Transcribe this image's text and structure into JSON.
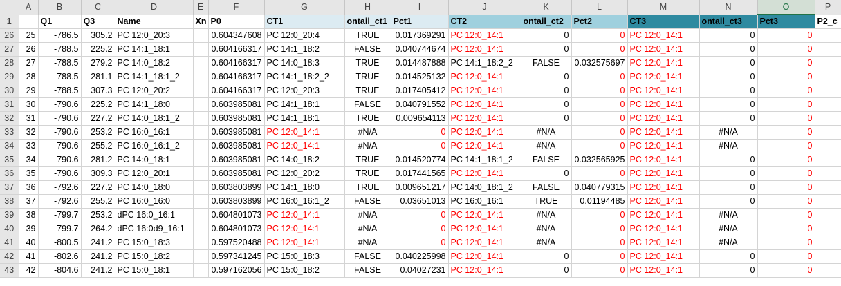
{
  "columns": [
    "",
    "A",
    "B",
    "C",
    "D",
    "E",
    "F",
    "G",
    "H",
    "I",
    "J",
    "K",
    "L",
    "M",
    "N",
    "O",
    "P"
  ],
  "selected_column": "O",
  "header_row": {
    "row_num": "1",
    "cells": [
      "",
      "Q1",
      "Q3",
      "Name",
      "Xn",
      "P0",
      "CT1",
      "ontail_ct1",
      "Pct1",
      "CT2",
      "ontail_ct2",
      "Pct2",
      "CT3",
      "ontail_ct3",
      "Pct3",
      "P2_c"
    ]
  },
  "rows": [
    {
      "n": "26",
      "cells": [
        "25",
        "-786.5",
        "305.2",
        "PC 12:0_20:3",
        "",
        "0.604347608",
        "PC 12:0_20:4",
        "TRUE",
        "0.017369291",
        "PC 12:0_14:1",
        "0",
        "0",
        "PC 12:0_14:1",
        "0",
        "0",
        ""
      ]
    },
    {
      "n": "27",
      "cells": [
        "26",
        "-788.5",
        "225.2",
        "PC 14:1_18:1",
        "",
        "0.604166317",
        "PC 14:1_18:2",
        "FALSE",
        "0.040744674",
        "PC 12:0_14:1",
        "0",
        "0",
        "PC 12:0_14:1",
        "0",
        "0",
        ""
      ]
    },
    {
      "n": "28",
      "cells": [
        "27",
        "-788.5",
        "279.2",
        "PC 14:0_18:2",
        "",
        "0.604166317",
        "PC 14:0_18:3",
        "TRUE",
        "0.014487888",
        "PC 14:1_18:2_2",
        "FALSE",
        "0.032575697",
        "PC 12:0_14:1",
        "0",
        "0",
        ""
      ]
    },
    {
      "n": "29",
      "cells": [
        "28",
        "-788.5",
        "281.1",
        "PC 14:1_18:1_2",
        "",
        "0.604166317",
        "PC 14:1_18:2_2",
        "TRUE",
        "0.014525132",
        "PC 12:0_14:1",
        "0",
        "0",
        "PC 12:0_14:1",
        "0",
        "0",
        ""
      ]
    },
    {
      "n": "30",
      "cells": [
        "29",
        "-788.5",
        "307.3",
        "PC 12:0_20:2",
        "",
        "0.604166317",
        "PC 12:0_20:3",
        "TRUE",
        "0.017405412",
        "PC 12:0_14:1",
        "0",
        "0",
        "PC 12:0_14:1",
        "0",
        "0",
        ""
      ]
    },
    {
      "n": "31",
      "cells": [
        "30",
        "-790.6",
        "225.2",
        "PC 14:1_18:0",
        "",
        "0.603985081",
        "PC 14:1_18:1",
        "FALSE",
        "0.040791552",
        "PC 12:0_14:1",
        "0",
        "0",
        "PC 12:0_14:1",
        "0",
        "0",
        ""
      ]
    },
    {
      "n": "32",
      "cells": [
        "31",
        "-790.6",
        "227.2",
        "PC 14:0_18:1_2",
        "",
        "0.603985081",
        "PC 14:1_18:1",
        "TRUE",
        "0.009654113",
        "PC 12:0_14:1",
        "0",
        "0",
        "PC 12:0_14:1",
        "0",
        "0",
        ""
      ]
    },
    {
      "n": "33",
      "cells": [
        "32",
        "-790.6",
        "253.2",
        "PC 16:0_16:1",
        "",
        "0.603985081",
        "PC 12:0_14:1",
        "#N/A",
        "0",
        "PC 12:0_14:1",
        "#N/A",
        "0",
        "PC 12:0_14:1",
        "#N/A",
        "0",
        ""
      ]
    },
    {
      "n": "34",
      "cells": [
        "33",
        "-790.6",
        "255.2",
        "PC 16:0_16:1_2",
        "",
        "0.603985081",
        "PC 12:0_14:1",
        "#N/A",
        "0",
        "PC 12:0_14:1",
        "#N/A",
        "0",
        "PC 12:0_14:1",
        "#N/A",
        "0",
        ""
      ]
    },
    {
      "n": "35",
      "cells": [
        "34",
        "-790.6",
        "281.2",
        "PC 14:0_18:1",
        "",
        "0.603985081",
        "PC 14:0_18:2",
        "TRUE",
        "0.014520774",
        "PC 14:1_18:1_2",
        "FALSE",
        "0.032565925",
        "PC 12:0_14:1",
        "0",
        "0",
        ""
      ]
    },
    {
      "n": "36",
      "cells": [
        "35",
        "-790.6",
        "309.3",
        "PC 12:0_20:1",
        "",
        "0.603985081",
        "PC 12:0_20:2",
        "TRUE",
        "0.017441565",
        "PC 12:0_14:1",
        "0",
        "0",
        "PC 12:0_14:1",
        "0",
        "0",
        ""
      ]
    },
    {
      "n": "37",
      "cells": [
        "36",
        "-792.6",
        "227.2",
        "PC 14:0_18:0",
        "",
        "0.603803899",
        "PC 14:1_18:0",
        "TRUE",
        "0.009651217",
        "PC 14:0_18:1_2",
        "FALSE",
        "0.040779315",
        "PC 12:0_14:1",
        "0",
        "0",
        ""
      ]
    },
    {
      "n": "38",
      "cells": [
        "37",
        "-792.6",
        "255.2",
        "PC 16:0_16:0",
        "",
        "0.603803899",
        "PC 16:0_16:1_2",
        "FALSE",
        "0.03651013",
        "PC 16:0_16:1",
        "TRUE",
        "0.01194485",
        "PC 12:0_14:1",
        "0",
        "0",
        ""
      ]
    },
    {
      "n": "39",
      "cells": [
        "38",
        "-799.7",
        "253.2",
        "dPC 16:0_16:1",
        "",
        "0.604801073",
        "PC 12:0_14:1",
        "#N/A",
        "0",
        "PC 12:0_14:1",
        "#N/A",
        "0",
        "PC 12:0_14:1",
        "#N/A",
        "0",
        ""
      ]
    },
    {
      "n": "40",
      "cells": [
        "39",
        "-799.7",
        "264.2",
        "dPC 16:0d9_16:1",
        "",
        "0.604801073",
        "PC 12:0_14:1",
        "#N/A",
        "0",
        "PC 12:0_14:1",
        "#N/A",
        "0",
        "PC 12:0_14:1",
        "#N/A",
        "0",
        ""
      ]
    },
    {
      "n": "41",
      "cells": [
        "40",
        "-800.5",
        "241.2",
        "PC 15:0_18:3",
        "",
        "0.597520488",
        "PC 12:0_14:1",
        "#N/A",
        "0",
        "PC 12:0_14:1",
        "#N/A",
        "0",
        "PC 12:0_14:1",
        "#N/A",
        "0",
        ""
      ]
    },
    {
      "n": "42",
      "cells": [
        "41",
        "-802.6",
        "241.2",
        "PC 15:0_18:2",
        "",
        "0.597341245",
        "PC 15:0_18:3",
        "FALSE",
        "0.040225998",
        "PC 12:0_14:1",
        "0",
        "0",
        "PC 12:0_14:1",
        "0",
        "0",
        ""
      ]
    },
    {
      "n": "43",
      "cells": [
        "42",
        "-804.6",
        "241.2",
        "PC 15:0_18:1",
        "",
        "0.597162056",
        "PC 15:0_18:2",
        "FALSE",
        "0.04027231",
        "PC 12:0_14:1",
        "0",
        "0",
        "PC 12:0_14:1",
        "0",
        "0",
        ""
      ]
    }
  ],
  "colors": {
    "header_light": "#dcebf2",
    "header_mid": "#9fd0de",
    "header_dark": "#2e8aa0",
    "red_text": "#ff0000",
    "selected_col": "#217346"
  }
}
